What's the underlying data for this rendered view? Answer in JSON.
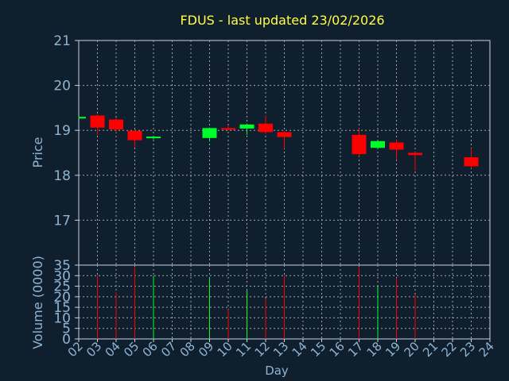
{
  "chart_data": {
    "type": "candlestick",
    "title": "FDUS - last updated 23/02/2026",
    "xlabel": "Day",
    "price_panel": {
      "ylabel": "Price",
      "ylim": [
        16.0,
        21.0
      ],
      "yticks": [
        "17",
        "18",
        "19",
        "20",
        "21"
      ]
    },
    "volume_panel": {
      "ylabel": "Volume (0000)",
      "ylim": [
        0,
        35
      ],
      "yticks": [
        "0",
        "5",
        "10",
        "15",
        "20",
        "25",
        "30",
        "35"
      ]
    },
    "x_ticks": [
      "02",
      "03",
      "04",
      "05",
      "06",
      "07",
      "08",
      "09",
      "10",
      "11",
      "12",
      "13",
      "14",
      "15",
      "16",
      "17",
      "18",
      "19",
      "20",
      "21",
      "22",
      "23",
      "24"
    ],
    "candles": [
      {
        "day": "02",
        "open": 19.27,
        "close": 19.3,
        "high": 19.3,
        "low": 19.26,
        "volume": null
      },
      {
        "day": "03",
        "open": 19.33,
        "close": 19.06,
        "high": 19.35,
        "low": 18.9,
        "volume": 30
      },
      {
        "day": "04",
        "open": 19.24,
        "close": 19.02,
        "high": 19.28,
        "low": 18.95,
        "volume": 22
      },
      {
        "day": "05",
        "open": 18.99,
        "close": 18.78,
        "high": 19.0,
        "low": 18.62,
        "volume": 34
      },
      {
        "day": "06",
        "open": 18.84,
        "close": 18.86,
        "high": 18.88,
        "low": 18.8,
        "volume": 30
      },
      {
        "day": "09",
        "open": 18.83,
        "close": 19.05,
        "high": 19.06,
        "low": 18.75,
        "volume": 29
      },
      {
        "day": "10",
        "open": 19.05,
        "close": 19.03,
        "high": 19.1,
        "low": 19.0,
        "volume": 14
      },
      {
        "day": "11",
        "open": 19.04,
        "close": 19.13,
        "high": 19.14,
        "low": 18.9,
        "volume": 23
      },
      {
        "day": "12",
        "open": 19.15,
        "close": 18.96,
        "high": 19.33,
        "low": 18.92,
        "volume": 19
      },
      {
        "day": "13",
        "open": 18.96,
        "close": 18.85,
        "high": 18.98,
        "low": 18.6,
        "volume": 30
      },
      {
        "day": "17",
        "open": 18.9,
        "close": 18.47,
        "high": 19.05,
        "low": 18.42,
        "volume": 34
      },
      {
        "day": "18",
        "open": 18.61,
        "close": 18.76,
        "high": 18.77,
        "low": 18.58,
        "volume": 25
      },
      {
        "day": "19",
        "open": 18.73,
        "close": 18.57,
        "high": 18.8,
        "low": 18.34,
        "volume": 29
      },
      {
        "day": "20",
        "open": 18.5,
        "close": 18.45,
        "high": 18.52,
        "low": 18.1,
        "volume": 21
      },
      {
        "day": "23",
        "open": 18.4,
        "close": 18.2,
        "high": 18.6,
        "low": 18.15,
        "volume": null
      }
    ],
    "grid": true,
    "colors": {
      "background": "#0f1f2e",
      "axes": "#c8d4e0",
      "grid": "#9aa6b2",
      "text": "#8fb5d5",
      "title": "#ffff40",
      "up": "#00ff2a",
      "down": "#ff0000"
    }
  }
}
